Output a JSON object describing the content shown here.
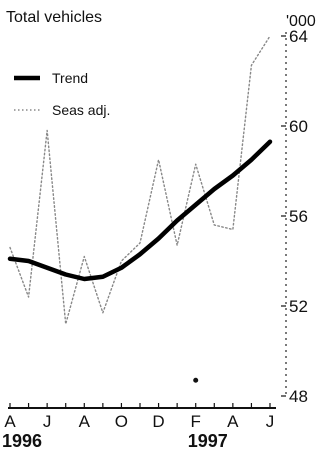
{
  "chart_data": {
    "type": "line",
    "title": "Total vehicles",
    "xlabel": "",
    "ylabel": "'000",
    "ylim": [
      48,
      64
    ],
    "yticks": [
      48,
      52,
      56,
      60,
      64
    ],
    "x": [
      0,
      1,
      2,
      3,
      4,
      5,
      6,
      7,
      8,
      9,
      10,
      11,
      12,
      13,
      14
    ],
    "x_tick_labels": [
      "A",
      "J",
      "A",
      "O",
      "D",
      "F",
      "A",
      "J"
    ],
    "x_tick_positions": [
      0,
      2,
      4,
      6,
      8,
      10,
      12,
      14
    ],
    "year_labels": [
      {
        "label": "1996",
        "x": 0
      },
      {
        "label": "1997",
        "x": 10
      }
    ],
    "legend_position": "top-left",
    "grid": false,
    "series": [
      {
        "name": "Trend",
        "style": "thick-solid",
        "color": "#000000",
        "values": [
          54.1,
          54.0,
          53.7,
          53.4,
          53.2,
          53.3,
          53.7,
          54.3,
          55.0,
          55.8,
          56.5,
          57.2,
          57.8,
          58.5,
          59.3
        ]
      },
      {
        "name": "Seas adj.",
        "style": "thin-dotted",
        "color": "#888888",
        "values": [
          54.6,
          52.4,
          59.8,
          51.2,
          54.2,
          51.7,
          54.0,
          54.8,
          58.5,
          54.7,
          58.3,
          55.6,
          55.4,
          62.7,
          64.0
        ]
      }
    ],
    "annotation_marks": [
      {
        "x": 10,
        "y": 48.7
      }
    ]
  }
}
